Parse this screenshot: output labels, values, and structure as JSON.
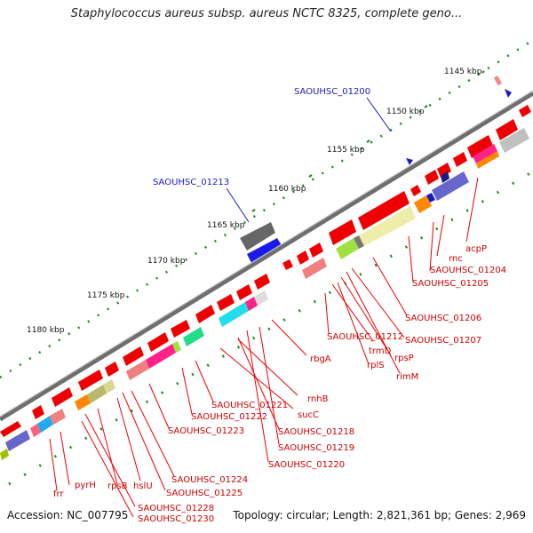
{
  "title": "Staphylococcus aureus subsp. aureus NCTC 8325, complete geno...",
  "footer": {
    "accession": "Accession: NC_007795",
    "topology": "Topology: circular; Length: 2,821,361 bp; Genes: 2,969"
  },
  "colors": {
    "backbone": "#808080",
    "forward_gene": "#ff0000",
    "tick": "#1a8a1a",
    "label": "#cc0000",
    "highlight_label": "#1a1acc"
  },
  "scale_labels": [
    "1145 kbp",
    "1150 kbp",
    "1155 kbp",
    "1160 kbp",
    "1165 kbp",
    "1170 kbp",
    "1175 kbp",
    "1180 kbp"
  ],
  "highlight_labels": [
    "SAOUHSC_01200",
    "SAOUHSC_01213"
  ],
  "gene_labels": [
    "acpP",
    "rnc",
    "SAOUHSC_01204",
    "SAOUHSC_01205",
    "SAOUHSC_01206",
    "SAOUHSC_01207",
    "SAOUHSC_01212",
    "trmD",
    "rpsP",
    "rplS",
    "rimM",
    "rbgA",
    "rnhB",
    "sucC",
    "SAOUHSC_01218",
    "SAOUHSC_01219",
    "SAOUHSC_01220",
    "SAOUHSC_01221",
    "SAOUHSC_01222",
    "SAOUHSC_01223",
    "SAOUHSC_01224",
    "SAOUHSC_01225",
    "hslU",
    "rpsB",
    "SAOUHSC_01228",
    "SAOUHSC_01230",
    "pyrH",
    "frr"
  ]
}
